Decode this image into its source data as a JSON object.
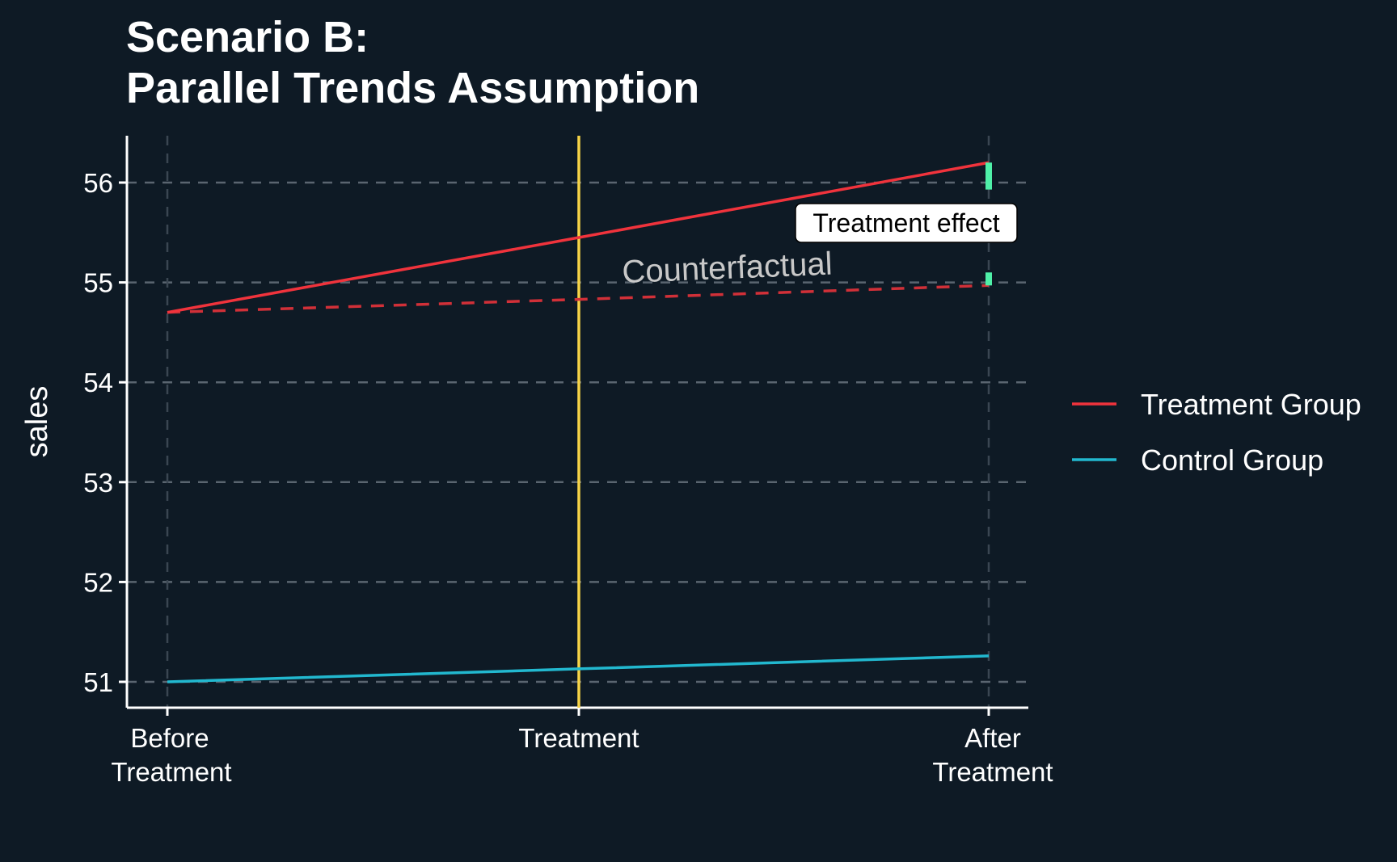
{
  "chart_data": {
    "type": "line",
    "title_line1": "Scenario B:",
    "title_line2": "Parallel Trends Assumption",
    "xlabel": "",
    "ylabel": "sales",
    "categories": [
      [
        "Before",
        "Treatment"
      ],
      [
        "Treatment"
      ],
      [
        "After",
        "Treatment"
      ]
    ],
    "x": [
      0,
      1,
      2
    ],
    "ylim": [
      50.75,
      56.45
    ],
    "yticks": [
      51,
      52,
      53,
      54,
      55,
      56
    ],
    "grid": "dashed",
    "legend_position": "right",
    "series": [
      {
        "name": "Treatment Group",
        "color": "#f0333c",
        "values": [
          54.7,
          55.45,
          56.2
        ],
        "style": "solid"
      },
      {
        "name": "Control Group",
        "color": "#22b8cf",
        "values": [
          51.0,
          51.13,
          51.26
        ],
        "style": "solid"
      }
    ],
    "counterfactual": {
      "color": "#d13038",
      "values": [
        54.7,
        54.83,
        54.97
      ],
      "style": "dashed"
    },
    "treatment_line": {
      "x": 1,
      "color": "#f7d447"
    },
    "effect_markers": {
      "color": "#4ff0a8",
      "x": 2,
      "segments": [
        [
          55.93,
          56.2
        ],
        [
          54.97,
          55.1
        ]
      ]
    },
    "annotations": {
      "counterfactual_label": "Counterfactual",
      "effect_label": "Treatment effect"
    }
  }
}
